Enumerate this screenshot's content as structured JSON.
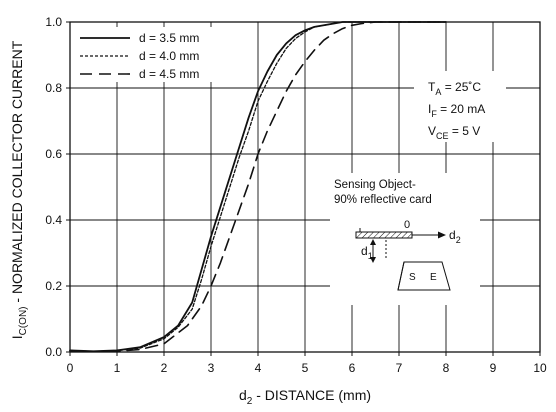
{
  "chart_data": {
    "type": "line",
    "title": "",
    "xlabel": "d2 - DISTANCE (mm)",
    "ylabel": "IC(ON) - NORMALIZED COLLECTOR CURRENT",
    "x_ticks": [
      "0",
      "1",
      "2",
      "3",
      "4",
      "5",
      "6",
      "7",
      "8",
      "9",
      "10"
    ],
    "y_ticks": [
      "0.0",
      "0.2",
      "0.4",
      "0.6",
      "0.8",
      "1.0"
    ],
    "xlim": [
      0,
      10
    ],
    "ylim": [
      0,
      1.0
    ],
    "grid": true,
    "legend_position": "top-left",
    "series": [
      {
        "name": "d = 3.5 mm",
        "style": "solid",
        "x": [
          0,
          0.5,
          1,
          1.5,
          2,
          2.3,
          2.6,
          2.8,
          3,
          3.2,
          3.4,
          3.6,
          3.8,
          4,
          4.2,
          4.4,
          4.6,
          4.8,
          5,
          5.2,
          5.4,
          5.6,
          5.8,
          6,
          6.5,
          7,
          7.5,
          8
        ],
        "y": [
          0.005,
          0.002,
          0.005,
          0.015,
          0.045,
          0.08,
          0.15,
          0.25,
          0.35,
          0.44,
          0.53,
          0.62,
          0.71,
          0.79,
          0.85,
          0.9,
          0.935,
          0.96,
          0.975,
          0.985,
          0.99,
          0.995,
          1.0,
          1.0,
          1.0,
          1.0,
          1.0,
          1.0
        ]
      },
      {
        "name": "d = 4.0 mm",
        "style": "dotted",
        "x": [
          0,
          0.5,
          1,
          1.5,
          2,
          2.3,
          2.6,
          2.8,
          3,
          3.2,
          3.4,
          3.6,
          3.8,
          4,
          4.2,
          4.4,
          4.6,
          4.8,
          5,
          5.2,
          5.4,
          5.6,
          5.8,
          6,
          6.5,
          7,
          7.5,
          8
        ],
        "y": [
          0.005,
          0.002,
          0.004,
          0.012,
          0.04,
          0.075,
          0.13,
          0.22,
          0.32,
          0.41,
          0.5,
          0.59,
          0.67,
          0.76,
          0.82,
          0.875,
          0.92,
          0.95,
          0.97,
          0.985,
          0.99,
          0.995,
          1.0,
          1.0,
          1.0,
          1.0,
          1.0,
          1.0
        ]
      },
      {
        "name": "d = 4.5 mm",
        "style": "dashed",
        "x": [
          0,
          0.5,
          1,
          1.5,
          2,
          2.5,
          2.8,
          3,
          3.2,
          3.4,
          3.6,
          3.8,
          4,
          4.2,
          4.4,
          4.6,
          4.8,
          5,
          5.2,
          5.4,
          5.6,
          5.8,
          6,
          6.2,
          6.5,
          7,
          7.5,
          8
        ],
        "y": [
          0.002,
          0.001,
          0.002,
          0.008,
          0.025,
          0.08,
          0.14,
          0.2,
          0.27,
          0.35,
          0.43,
          0.51,
          0.6,
          0.67,
          0.73,
          0.79,
          0.84,
          0.88,
          0.915,
          0.945,
          0.965,
          0.98,
          0.99,
          0.995,
          1.0,
          1.0,
          1.0,
          1.0
        ]
      }
    ],
    "annotations": {
      "conditions": [
        {
          "main": "T",
          "sub": "A",
          "rest": " = 25˚C"
        },
        {
          "main": "I",
          "sub": "F",
          "rest": " = 20 mA"
        },
        {
          "main": "V",
          "sub": "CE",
          "rest": " = 5 V"
        }
      ],
      "sensing_title": "Sensing Object-",
      "sensing_subtitle": "90% reflective card",
      "zero_label": "0",
      "d2_label": "d",
      "d2_sub": "2",
      "d1_label": "d",
      "d1_sub": "1",
      "sensor_s": "S",
      "sensor_e": "E"
    }
  }
}
